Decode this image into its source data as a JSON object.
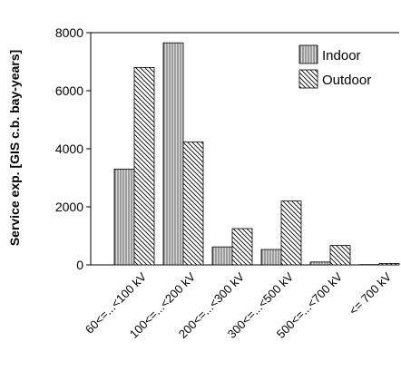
{
  "chart_data": {
    "type": "bar",
    "y_label": "Service exp. [GIS c.b. bay-years]",
    "categories": [
      "60<=...<100 kV",
      "100<=...<200 kV",
      "200<=...<300 kV",
      "300<=...<500 kV",
      "500<=...<700 kV",
      "<= 700 kV"
    ],
    "series": [
      {
        "name": "Indoor",
        "pattern": "vertical",
        "values": [
          3300,
          7650,
          620,
          530,
          100,
          10
        ]
      },
      {
        "name": "Outdoor",
        "pattern": "diagonal",
        "values": [
          6800,
          4230,
          1250,
          2200,
          670,
          50
        ]
      }
    ],
    "ylim": [
      0,
      8000
    ],
    "yticks": [
      0,
      2000,
      4000,
      6000,
      8000
    ],
    "legend": "top-right"
  }
}
